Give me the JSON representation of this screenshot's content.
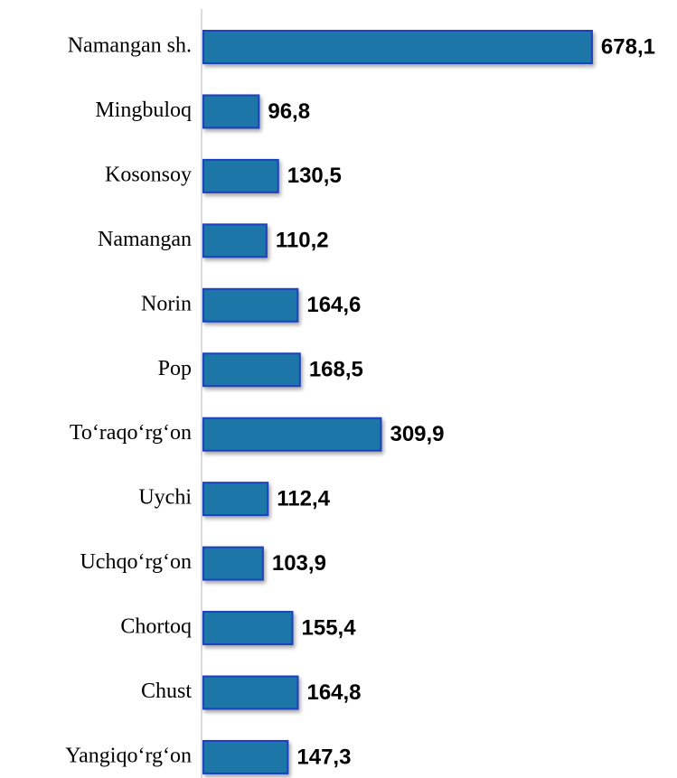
{
  "chart_data": {
    "type": "bar",
    "orientation": "horizontal",
    "categories": [
      "Namangan sh.",
      "Mingbuloq",
      "Kosonsoy",
      "Namangan",
      "Norin",
      "Pop",
      "To‘raqo‘rg‘on",
      "Uychi",
      "Uchqo‘rg‘on",
      "Chortoq",
      "Chust",
      "Yangiqo‘rg‘on"
    ],
    "values": [
      678.1,
      96.8,
      130.5,
      110.2,
      164.6,
      168.5,
      309.9,
      112.4,
      103.9,
      155.4,
      164.8,
      147.3
    ],
    "value_labels": [
      "678,1",
      "96,8",
      "130,5",
      "110,2",
      "164,6",
      "168,5",
      "309,9",
      "112,4",
      "103,9",
      "155,4",
      "164,8",
      "147,3"
    ],
    "color": "#1f76a8"
  }
}
